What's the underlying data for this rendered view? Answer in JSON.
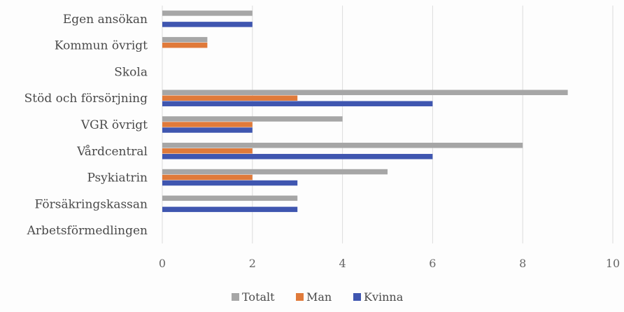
{
  "chart_data": {
    "type": "bar",
    "orientation": "horizontal",
    "categories": [
      "Egen ansökan",
      "Kommun övrigt",
      "Skola",
      "Stöd och försörjning",
      "VGR övrigt",
      "Vårdcentral",
      "Psykiatrin",
      "Försäkringskassan",
      "Arbetsförmedlingen"
    ],
    "series": [
      {
        "name": "Totalt",
        "color": "#a6a6a6",
        "values": [
          2,
          1,
          0,
          9,
          4,
          8,
          5,
          3,
          0
        ]
      },
      {
        "name": "Man",
        "color": "#e07a3a",
        "values": [
          0,
          1,
          0,
          3,
          2,
          2,
          2,
          0,
          0
        ]
      },
      {
        "name": "Kvinna",
        "color": "#3f56b0",
        "values": [
          2,
          0,
          0,
          6,
          2,
          6,
          3,
          3,
          0
        ]
      }
    ],
    "xlim": [
      0,
      10
    ],
    "xticks": [
      0,
      2,
      4,
      6,
      8,
      10
    ],
    "grid": true,
    "legend_position": "bottom"
  }
}
